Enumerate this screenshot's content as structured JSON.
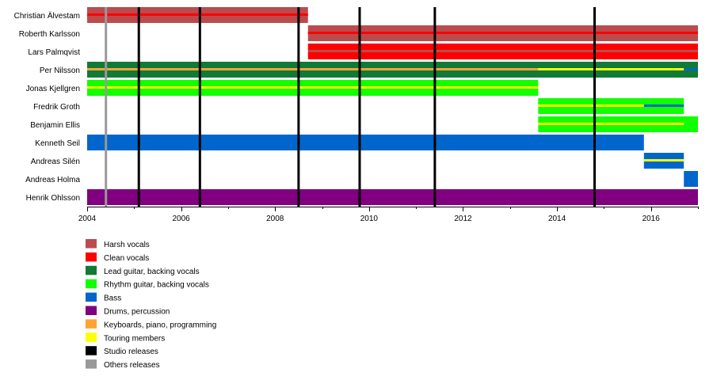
{
  "chart_data": {
    "type": "timeline",
    "title": "",
    "xlim": [
      2004.0,
      2017.0
    ],
    "x_ticks": [
      2004,
      2006,
      2008,
      2010,
      2012,
      2014,
      2016
    ],
    "grid": false,
    "legend_position": "bottom-left",
    "roles": [
      {
        "key": "harsh",
        "label": "Harsh vocals",
        "color": "#bc4b4e"
      },
      {
        "key": "clean",
        "label": "Clean vocals",
        "color": "#ff0000"
      },
      {
        "key": "lead",
        "label": "Lead guitar, backing vocals",
        "color": "#107a36"
      },
      {
        "key": "rhythm",
        "label": "Rhythm guitar, backing vocals",
        "color": "#11ff00"
      },
      {
        "key": "bass",
        "label": "Bass",
        "color": "#0066cc"
      },
      {
        "key": "drums",
        "label": "Drums, percussion",
        "color": "#800080"
      },
      {
        "key": "keys",
        "label": "Keyboards, piano, programming",
        "color": "#ffa333"
      },
      {
        "key": "touring",
        "label": "Touring members",
        "color": "#ffff00"
      },
      {
        "key": "studio",
        "label": "Studio releases",
        "color": "#000000"
      },
      {
        "key": "other",
        "label": "Others releases",
        "color": "#999999"
      }
    ],
    "members": [
      {
        "name": "Christian Älvestam",
        "spans": [
          {
            "role": "harsh",
            "start": 2004.0,
            "end": 2008.7,
            "accents": [
              "clean"
            ]
          }
        ]
      },
      {
        "name": "Roberth Karlsson",
        "spans": [
          {
            "role": "harsh",
            "start": 2008.7,
            "end": 2017.0,
            "accents": [
              "clean"
            ]
          }
        ]
      },
      {
        "name": "Lars Palmqvist",
        "spans": [
          {
            "role": "clean",
            "start": 2008.7,
            "end": 2017.0,
            "accents": [
              "harsh"
            ]
          }
        ]
      },
      {
        "name": "Per Nilsson",
        "spans": [
          {
            "role": "lead",
            "start": 2004.0,
            "end": 2017.0,
            "accents": [
              "keys"
            ]
          },
          {
            "role": "touring",
            "start": 2013.6,
            "end": 2016.7,
            "band": "accent"
          },
          {
            "role": "bass",
            "start": 2016.7,
            "end": 2017.0,
            "band": "accent"
          }
        ]
      },
      {
        "name": "Jonas Kjellgren",
        "spans": [
          {
            "role": "rhythm",
            "start": 2004.0,
            "end": 2013.6,
            "accents": [
              "touring"
            ]
          }
        ]
      },
      {
        "name": "Fredrik Groth",
        "spans": [
          {
            "role": "rhythm",
            "start": 2013.6,
            "end": 2016.7,
            "accents": [
              "touring"
            ]
          },
          {
            "role": "bass",
            "start": 2015.85,
            "end": 2016.7,
            "band": "accent"
          }
        ]
      },
      {
        "name": "Benjamin Ellis",
        "spans": [
          {
            "role": "rhythm",
            "start": 2013.6,
            "end": 2017.0
          },
          {
            "role": "touring",
            "start": 2013.6,
            "end": 2016.7,
            "band": "accent"
          }
        ]
      },
      {
        "name": "Kenneth Seil",
        "spans": [
          {
            "role": "bass",
            "start": 2004.0,
            "end": 2015.85
          }
        ]
      },
      {
        "name": "Andreas Silén",
        "spans": [
          {
            "role": "bass",
            "start": 2015.85,
            "end": 2016.7,
            "accents": [
              "touring"
            ]
          }
        ]
      },
      {
        "name": "Andreas Holma",
        "spans": [
          {
            "role": "bass",
            "start": 2016.7,
            "end": 2017.0
          }
        ]
      },
      {
        "name": "Henrik Ohlsson",
        "spans": [
          {
            "role": "drums",
            "start": 2004.0,
            "end": 2017.0
          }
        ]
      }
    ],
    "releases": [
      {
        "kind": "other",
        "x": 2004.4
      },
      {
        "kind": "studio",
        "x": 2005.1
      },
      {
        "kind": "studio",
        "x": 2006.4
      },
      {
        "kind": "studio",
        "x": 2008.5
      },
      {
        "kind": "studio",
        "x": 2009.8
      },
      {
        "kind": "studio",
        "x": 2011.4
      },
      {
        "kind": "studio",
        "x": 2014.8
      }
    ]
  }
}
